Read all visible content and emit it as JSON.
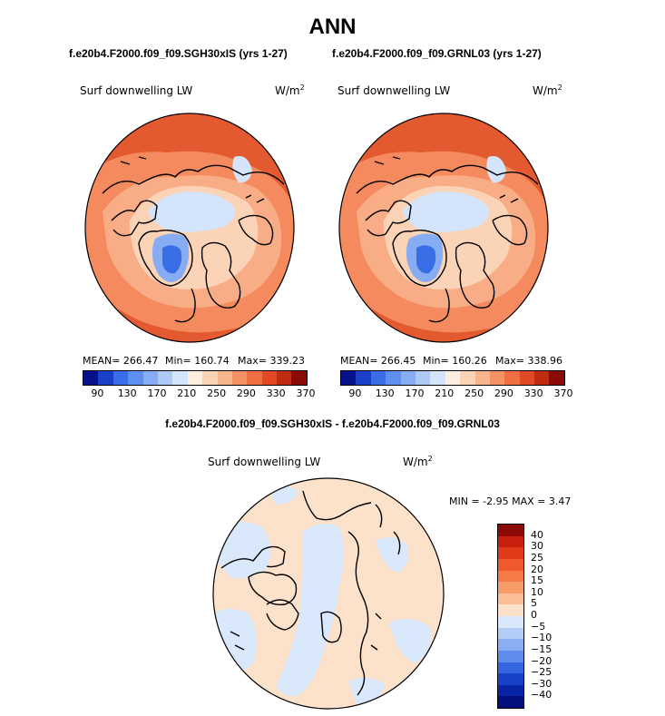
{
  "season": "ANN",
  "panels": [
    {
      "case_title": "f.e20b4.F2000.f09_f09.SGH30xIS (yrs 1-27)",
      "variable": "Surf downwelling LW",
      "units_base": "W/m",
      "units_exp": "2",
      "mean_label": "MEAN= 266.47",
      "min_label": "Min= 160.74",
      "max_label": "Max= 339.23"
    },
    {
      "case_title": "f.e20b4.F2000.f09_f09.GRNL03 (yrs 1-27)",
      "variable": "Surf downwelling LW",
      "units_base": "W/m",
      "units_exp": "2",
      "mean_label": "MEAN= 266.45",
      "min_label": "Min= 160.26",
      "max_label": "Max= 338.96"
    }
  ],
  "difference": {
    "title": "f.e20b4.F2000.f09_f09.SGH30xIS - f.e20b4.F2000.f09_f09.GRNL03",
    "variable": "Surf downwelling LW",
    "units_base": "W/m",
    "units_exp": "2",
    "minmax_label": "MIN =  -2.95 MAX =    3.47"
  },
  "chart_data": [
    {
      "type": "heatmap",
      "projection": "north-polar-stereographic",
      "title": "f.e20b4.F2000.f09_f09.SGH30xIS (yrs 1-27)",
      "variable": "Surf downwelling LW",
      "units": "W/m^2",
      "mean": 266.47,
      "min": 160.74,
      "max": 339.23,
      "colorbar_ticks": [
        "90",
        "130",
        "170",
        "210",
        "250",
        "290",
        "330",
        "370"
      ],
      "colorbar_colors": [
        "#05128a",
        "#1a3fc8",
        "#3a6ee6",
        "#5d8ff0",
        "#86acf3",
        "#afc9f6",
        "#d4e4fa",
        "#fdeee0",
        "#fbd3b6",
        "#f8b48c",
        "#f59264",
        "#f06f42",
        "#e14a24",
        "#bf2c14",
        "#8b0a05"
      ]
    },
    {
      "type": "heatmap",
      "projection": "north-polar-stereographic",
      "title": "f.e20b4.F2000.f09_f09.GRNL03 (yrs 1-27)",
      "variable": "Surf downwelling LW",
      "units": "W/m^2",
      "mean": 266.45,
      "min": 160.26,
      "max": 338.96,
      "colorbar_ticks": [
        "90",
        "130",
        "170",
        "210",
        "250",
        "290",
        "330",
        "370"
      ],
      "colorbar_colors": [
        "#05128a",
        "#1a3fc8",
        "#3a6ee6",
        "#5d8ff0",
        "#86acf3",
        "#afc9f6",
        "#d4e4fa",
        "#fdeee0",
        "#fbd3b6",
        "#f8b48c",
        "#f59264",
        "#f06f42",
        "#e14a24",
        "#bf2c14",
        "#8b0a05"
      ]
    },
    {
      "type": "heatmap",
      "projection": "north-polar-stereographic",
      "title": "f.e20b4.F2000.f09_f09.SGH30xIS - f.e20b4.F2000.f09_f09.GRNL03",
      "variable": "Surf downwelling LW",
      "units": "W/m^2",
      "min": -2.95,
      "max": 3.47,
      "colorbar_ticks": [
        "40",
        "30",
        "25",
        "20",
        "15",
        "10",
        "5",
        "0",
        "−5",
        "−10",
        "−15",
        "−20",
        "−25",
        "−30",
        "−40"
      ],
      "colorbar_colors": [
        "#8b0a05",
        "#c8200e",
        "#e03a18",
        "#ee5a2e",
        "#f57a46",
        "#f89c6a",
        "#fbbf98",
        "#fde2cb",
        "#d9e8fb",
        "#b4cdf7",
        "#8aaef2",
        "#5e8bec",
        "#3465e0",
        "#1742c8",
        "#0a24a6",
        "#050f7e"
      ]
    }
  ]
}
